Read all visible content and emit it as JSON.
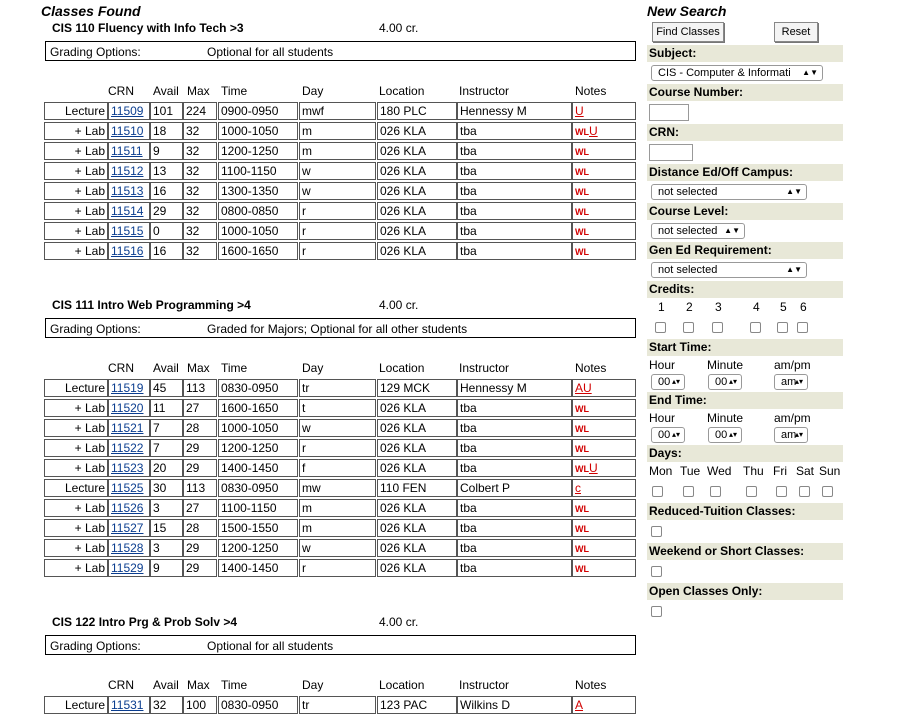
{
  "header": {
    "classes_found": "Classes Found",
    "new_search": "New Search"
  },
  "columns": [
    "CRN",
    "Avail",
    "Max",
    "Time",
    "Day",
    "Location",
    "Instructor",
    "Notes"
  ],
  "grading_label": "Grading Options:",
  "courses": [
    {
      "title": "CIS 110   Fluency with Info Tech >3",
      "credits": "4.00 cr.",
      "grading": "Optional for all students",
      "rows": [
        {
          "type": "Lecture",
          "crn": "11509",
          "avail": "101",
          "max": "224",
          "time": "0900-0950",
          "day": "mwf",
          "loc": "180 PLC",
          "instr": "Hennessy M",
          "notes": "U"
        },
        {
          "type": "+ Lab",
          "crn": "11510",
          "avail": "18",
          "max": "32",
          "time": "1000-1050",
          "day": "m",
          "loc": "026 KLA",
          "instr": "tba",
          "notes": "WL U"
        },
        {
          "type": "+ Lab",
          "crn": "11511",
          "avail": "9",
          "max": "32",
          "time": "1200-1250",
          "day": "m",
          "loc": "026 KLA",
          "instr": "tba",
          "notes": "WL"
        },
        {
          "type": "+ Lab",
          "crn": "11512",
          "avail": "13",
          "max": "32",
          "time": "1100-1150",
          "day": "w",
          "loc": "026 KLA",
          "instr": "tba",
          "notes": "WL"
        },
        {
          "type": "+ Lab",
          "crn": "11513",
          "avail": "16",
          "max": "32",
          "time": "1300-1350",
          "day": "w",
          "loc": "026 KLA",
          "instr": "tba",
          "notes": "WL"
        },
        {
          "type": "+ Lab",
          "crn": "11514",
          "avail": "29",
          "max": "32",
          "time": "0800-0850",
          "day": "r",
          "loc": "026 KLA",
          "instr": "tba",
          "notes": "WL"
        },
        {
          "type": "+ Lab",
          "crn": "11515",
          "avail": "0",
          "max": "32",
          "time": "1000-1050",
          "day": "r",
          "loc": "026 KLA",
          "instr": "tba",
          "notes": "WL"
        },
        {
          "type": "+ Lab",
          "crn": "11516",
          "avail": "16",
          "max": "32",
          "time": "1600-1650",
          "day": "r",
          "loc": "026 KLA",
          "instr": "tba",
          "notes": "WL"
        }
      ]
    },
    {
      "title": "CIS 111   Intro Web Programming >4",
      "credits": "4.00 cr.",
      "grading": "Graded for Majors; Optional for all other students",
      "rows": [
        {
          "type": "Lecture",
          "crn": "11519",
          "avail": "45",
          "max": "113",
          "time": "0830-0950",
          "day": "tr",
          "loc": "129 MCK",
          "instr": "Hennessy M",
          "notes": "AU"
        },
        {
          "type": "+ Lab",
          "crn": "11520",
          "avail": "11",
          "max": "27",
          "time": "1600-1650",
          "day": "t",
          "loc": "026 KLA",
          "instr": "tba",
          "notes": "WL"
        },
        {
          "type": "+ Lab",
          "crn": "11521",
          "avail": "7",
          "max": "28",
          "time": "1000-1050",
          "day": "w",
          "loc": "026 KLA",
          "instr": "tba",
          "notes": "WL"
        },
        {
          "type": "+ Lab",
          "crn": "11522",
          "avail": "7",
          "max": "29",
          "time": "1200-1250",
          "day": "r",
          "loc": "026 KLA",
          "instr": "tba",
          "notes": "WL"
        },
        {
          "type": "+ Lab",
          "crn": "11523",
          "avail": "20",
          "max": "29",
          "time": "1400-1450",
          "day": "f",
          "loc": "026 KLA",
          "instr": "tba",
          "notes": "WL U"
        },
        {
          "type": "Lecture",
          "crn": "11525",
          "avail": "30",
          "max": "113",
          "time": "0830-0950",
          "day": "mw",
          "loc": "110 FEN",
          "instr": "Colbert P",
          "notes": "c"
        },
        {
          "type": "+ Lab",
          "crn": "11526",
          "avail": "3",
          "max": "27",
          "time": "1100-1150",
          "day": "m",
          "loc": "026 KLA",
          "instr": "tba",
          "notes": "WL"
        },
        {
          "type": "+ Lab",
          "crn": "11527",
          "avail": "15",
          "max": "28",
          "time": "1500-1550",
          "day": "m",
          "loc": "026 KLA",
          "instr": "tba",
          "notes": "WL"
        },
        {
          "type": "+ Lab",
          "crn": "11528",
          "avail": "3",
          "max": "29",
          "time": "1200-1250",
          "day": "w",
          "loc": "026 KLA",
          "instr": "tba",
          "notes": "WL"
        },
        {
          "type": "+ Lab",
          "crn": "11529",
          "avail": "9",
          "max": "29",
          "time": "1400-1450",
          "day": "r",
          "loc": "026 KLA",
          "instr": "tba",
          "notes": "WL"
        }
      ]
    },
    {
      "title": "CIS 122   Intro Prg & Prob Solv >4",
      "credits": "4.00 cr.",
      "grading": "Optional for all students",
      "rows": [
        {
          "type": "Lecture",
          "crn": "11531",
          "avail": "32",
          "max": "100",
          "time": "0830-0950",
          "day": "tr",
          "loc": "123 PAC",
          "instr": "Wilkins D",
          "notes": "A"
        }
      ]
    }
  ],
  "search": {
    "find_button": "Find Classes",
    "reset_button": "Reset",
    "subject_label": "Subject:",
    "subject_value": "CIS - Computer & Informati",
    "course_number_label": "Course Number:",
    "crn_label": "CRN:",
    "distance_label": "Distance Ed/Off Campus:",
    "distance_value": "not selected",
    "course_level_label": "Course Level:",
    "course_level_value": "not selected",
    "gen_ed_label": "Gen Ed Requirement:",
    "gen_ed_value": "not selected",
    "credits_label": "Credits:",
    "credits_options": [
      "1",
      "2",
      "3",
      "4",
      "5",
      "6"
    ],
    "start_time_label": "Start Time:",
    "end_time_label": "End Time:",
    "hour_label": "Hour",
    "minute_label": "Minute",
    "ampm_label": "am/pm",
    "start_hour": "00",
    "start_minute": "00",
    "start_ampm": "am",
    "end_hour": "00",
    "end_minute": "00",
    "end_ampm": "am",
    "days_label": "Days:",
    "days": [
      "Mon",
      "Tue",
      "Wed",
      "Thu",
      "Fri",
      "Sat",
      "Sun"
    ],
    "reduced_label": "Reduced-Tuition Classes:",
    "weekend_label": "Weekend or Short Classes:",
    "open_label": "Open Classes Only:"
  }
}
